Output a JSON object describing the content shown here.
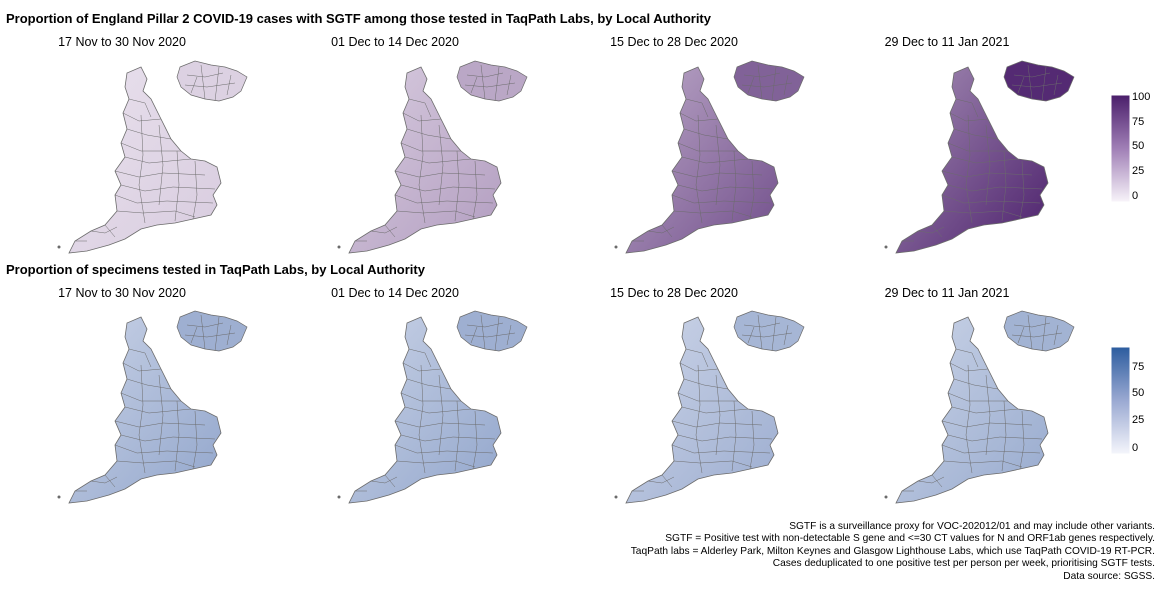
{
  "sgtf": {
    "title": "Proportion of England Pillar 2 COVID-19 cases with SGTF among those tested in TaqPath Labs, by Local Authority",
    "legend_ticks": [
      "100",
      "75",
      "50",
      "25",
      "0"
    ],
    "colors": {
      "low": "#f6f1f8",
      "high": "#4b1f6b",
      "border": "#6b6b6b"
    },
    "panels": [
      {
        "label": "17 Nov to 30 Nov 2020",
        "level": 0.14
      },
      {
        "label": "01 Dec to 14 Dec 2020",
        "level": 0.32
      },
      {
        "label": "15 Dec to 28 Dec 2020",
        "level": 0.62
      },
      {
        "label": "29 Dec to 11 Jan 2021",
        "level": 0.86
      }
    ]
  },
  "taqpath": {
    "title": "Proportion of specimens tested in TaqPath Labs, by Local Authority",
    "legend_ticks": [
      "75",
      "50",
      "25",
      "0"
    ],
    "colors": {
      "low": "#f4f5fb",
      "high": "#3a5ea1",
      "border": "#6b6b6b"
    },
    "panels": [
      {
        "label": "17 Nov to 30 Nov 2020",
        "level": 0.42
      },
      {
        "label": "01 Dec to 14 Dec 2020",
        "level": 0.42
      },
      {
        "label": "15 Dec to 28 Dec 2020",
        "level": 0.38
      },
      {
        "label": "29 Dec to 11 Jan 2021",
        "level": 0.4
      }
    ]
  },
  "notes": [
    "SGTF is a surveillance proxy for VOC-202012/01 and may include other variants.",
    "SGTF = Positive test with non-detectable S gene and <=30 CT values for N and ORF1ab genes respectively.",
    "TaqPath labs = Alderley Park, Milton Keynes and Glasgow Lighthouse Labs, which use TaqPath COVID-19 RT-PCR.",
    "Cases deduplicated to one positive test per person per week, prioritising SGTF tests.",
    "Data source: SGSS."
  ]
}
